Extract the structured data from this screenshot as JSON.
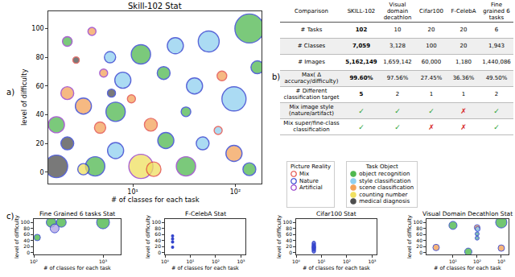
{
  "panel_labels": [
    "a)",
    "b)",
    "c)"
  ],
  "chart_data": [
    {
      "type": "scatter",
      "title": "Skill-102 Stat",
      "x_label": "# of classes for each task",
      "y_label": "level of difficulty",
      "log": "x",
      "grid": false,
      "xlim": [
        1.5,
        180
      ],
      "xticks": [
        {
          "value": 10,
          "label": "10¹"
        },
        {
          "value": 100,
          "label": "10²"
        }
      ],
      "ylim": [
        -8,
        112
      ],
      "yticks": [
        0,
        20,
        40,
        60,
        80,
        100
      ],
      "reality": {
        "title": "Picture Reality",
        "items": [
          {
            "name": "Mix",
            "color": "#e0413a"
          },
          {
            "name": "Nature",
            "color": "#2233cc"
          },
          {
            "name": "Artificial",
            "color": "#8e2ec4"
          }
        ]
      },
      "series_title": "Task Object",
      "series": [
        {
          "name": "object recognition",
          "color": "#4fb84f",
          "x": [
            137,
            12,
            2.3,
            20,
            164,
            6.8,
            1.8,
            21,
            4.3,
            33,
            137,
            33
          ],
          "values": [
            100,
            82,
            91,
            69,
            73,
            42,
            33,
            22,
            4,
            4,
            2,
            42
          ],
          "sizes": [
            36,
            24,
            12,
            16,
            16,
            24,
            20,
            20,
            24,
            24,
            16,
            12
          ],
          "edges": [
            "Nature",
            "Nature",
            "Artificial",
            "Nature",
            "Nature",
            "Nature",
            "Artificial",
            "Nature",
            "Nature",
            "Artificial",
            "Nature",
            "Nature"
          ]
        },
        {
          "name": "style classification",
          "color": "#8fd0f0",
          "x": [
            55,
            26,
            6,
            8,
            40,
            97,
            6.8,
            48,
            68
          ],
          "values": [
            91,
            88,
            80,
            64,
            60,
            51,
            15,
            20,
            29
          ],
          "sizes": [
            26,
            20,
            14,
            20,
            20,
            30,
            20,
            16,
            10
          ],
          "edges": [
            "Nature",
            "Nature",
            "Nature",
            "Nature",
            "Nature",
            "Nature",
            "Nature",
            "Nature",
            "Mix"
          ]
        },
        {
          "name": "scene classification",
          "color": "#f4a259",
          "x": [
            4,
            5.2,
            74,
            2.3,
            3.3,
            4.8,
            15,
            97,
            9.7
          ],
          "values": [
            98,
            69,
            67,
            55,
            46,
            31,
            33,
            13,
            51
          ],
          "sizes": [
            10,
            10,
            12,
            16,
            20,
            14,
            16,
            20,
            10
          ],
          "edges": [
            "Artificial",
            "Artificial",
            "Mix",
            "Artificial",
            "Nature",
            "Mix",
            "Mix",
            "Nature",
            "Mix"
          ]
        },
        {
          "name": "counting number",
          "color": "#f0e060",
          "x": [
            12,
            3.3,
            16
          ],
          "values": [
            4,
            2,
            2
          ],
          "sizes": [
            30,
            14,
            18
          ],
          "edges": [
            "Artificial",
            "Nature",
            "Mix"
          ]
        },
        {
          "name": "medical diagnosis",
          "color": "#4d4d4d",
          "x": [
            2.8,
            2.3,
            1.8,
            6.2
          ],
          "values": [
            78,
            20,
            4,
            55
          ],
          "sizes": [
            8,
            16,
            28,
            10
          ],
          "edges": [
            "Mix",
            "Nature",
            "Nature",
            "Nature"
          ]
        }
      ]
    },
    {
      "type": "scatter",
      "title": "Fine Grained 6 tasks Stat",
      "x_label": "# of classes for each task",
      "y_label": "level of difficulty",
      "log": "x",
      "grid": false,
      "xlim": [
        100,
        1800
      ],
      "xticks": [
        {
          "value": 100,
          "label": "10²"
        },
        {
          "value": 1000,
          "label": "10³"
        }
      ],
      "ylim": [
        -6,
        111
      ],
      "yticks": [
        0,
        20,
        40,
        60,
        80,
        100
      ],
      "marker": "circle",
      "edge_color": "#2233cc",
      "x": [
        112,
        178,
        250,
        200,
        1000
      ],
      "values": [
        50,
        100,
        100,
        80,
        100
      ],
      "sizes": [
        8,
        12,
        12,
        11,
        16
      ],
      "colors": [
        "#4fb84f",
        "#4fb84f",
        "#4fb84f",
        "#b3a7e6",
        "#4fb84f"
      ]
    },
    {
      "type": "scatter",
      "title": "F-CelebA Stat",
      "x_label": "# of classes for each task",
      "y_label": "level of difficulty",
      "log": "x",
      "grid": false,
      "xlim": [
        1,
        1500
      ],
      "xticks": [
        {
          "value": 1,
          "label": "10⁰"
        },
        {
          "value": 10,
          "label": "10¹"
        },
        {
          "value": 100,
          "label": "10²"
        },
        {
          "value": 1000,
          "label": "10³"
        }
      ],
      "ylim": [
        -6,
        111
      ],
      "yticks": [
        0,
        20,
        40,
        60,
        80,
        100
      ],
      "marker": "circle",
      "color": "#3344cc",
      "x": [
        2,
        2,
        2,
        2
      ],
      "values": [
        18,
        35,
        45,
        55
      ]
    },
    {
      "type": "scatter",
      "title": "Cifar100 Stat",
      "x_label": "# of classes for each task",
      "y_label": "level of difficulty",
      "log": "x",
      "grid": false,
      "xlim": [
        1,
        1500
      ],
      "xticks": [
        {
          "value": 1,
          "label": "10⁰"
        },
        {
          "value": 10,
          "label": "10¹"
        },
        {
          "value": 100,
          "label": "10²"
        },
        {
          "value": 1000,
          "label": "10³"
        }
      ],
      "ylim": [
        -6,
        111
      ],
      "yticks": [
        0,
        20,
        40,
        60,
        80,
        100
      ],
      "marker": "circle-open",
      "color": "#3344cc",
      "x": [
        5,
        5,
        5,
        5,
        5,
        5,
        5,
        5,
        5,
        5,
        5,
        5,
        5,
        5,
        5,
        5,
        5,
        5,
        5,
        5
      ],
      "values": [
        3,
        5,
        7,
        9,
        11,
        12,
        13,
        15,
        16,
        17,
        18,
        19,
        20,
        22,
        23,
        25,
        27,
        29,
        31,
        33
      ]
    },
    {
      "type": "scatter",
      "title": "Visual Domain Decathlon Stat",
      "x_label": "# of classes for each task",
      "y_label": "level of difficulty",
      "log": "x",
      "grid": false,
      "xlim": [
        0.8,
        2000
      ],
      "xticks": [
        {
          "value": 10,
          "label": "10¹"
        },
        {
          "value": 100,
          "label": "10²"
        },
        {
          "value": 1000,
          "label": "10³"
        }
      ],
      "ylim": [
        -6,
        111
      ],
      "yticks": [
        0,
        20,
        40,
        60,
        80,
        100
      ],
      "marker": "circle",
      "edge_color": "#2233cc",
      "x": [
        2,
        10,
        43,
        100,
        105,
        100,
        100,
        1000,
        1000
      ],
      "values": [
        17,
        90,
        3,
        83,
        78,
        62,
        48,
        100,
        15
      ],
      "sizes": [
        8,
        10,
        9,
        7,
        6,
        5,
        5,
        14,
        8
      ],
      "colors": [
        "#f4a259",
        "#4fb84f",
        "#4fb84f",
        "#f4a259",
        "#8fd0f0",
        "#5fa8a8",
        "#5fa8a8",
        "#4fb84f",
        "#f4a259"
      ]
    }
  ],
  "table": {
    "header": [
      "Comparison",
      "SKILL-102",
      "Visual domain decathlon",
      "Cifar100",
      "F-CelebA",
      "Fine grained 6 tasks"
    ],
    "rows": [
      [
        "# Tasks",
        "102",
        "10",
        "20",
        "20",
        "6"
      ],
      [
        "# Classes",
        "7,059",
        "3,128",
        "100",
        "20",
        "1,943"
      ],
      [
        "# Images",
        "5,162,149",
        "1,659,142",
        "60,000",
        "1,180",
        "1,440,086"
      ],
      [
        "Max( Δ accuracy/difficulty)",
        "99.60%",
        "97.56%",
        "27.45%",
        "36.36%",
        "49.50%"
      ],
      [
        "# Different classification target",
        "5",
        "2",
        "1",
        "1",
        "2"
      ],
      [
        "Mix image style (nature/artifact)",
        {
          "text": "✓",
          "color": "#2ca02c"
        },
        {
          "text": "✓",
          "color": "#2ca02c"
        },
        {
          "text": "✓",
          "color": "#2ca02c"
        },
        {
          "text": "✗",
          "color": "#d62728"
        },
        {
          "text": "✓",
          "color": "#2ca02c"
        }
      ],
      [
        "Mix super/fine-class classification",
        {
          "text": "✓",
          "color": "#2ca02c"
        },
        {
          "text": "✓",
          "color": "#2ca02c"
        },
        {
          "text": "✗",
          "color": "#d62728"
        },
        {
          "text": "✗",
          "color": "#d62728"
        },
        {
          "text": "✓",
          "color": "#2ca02c"
        }
      ]
    ]
  }
}
